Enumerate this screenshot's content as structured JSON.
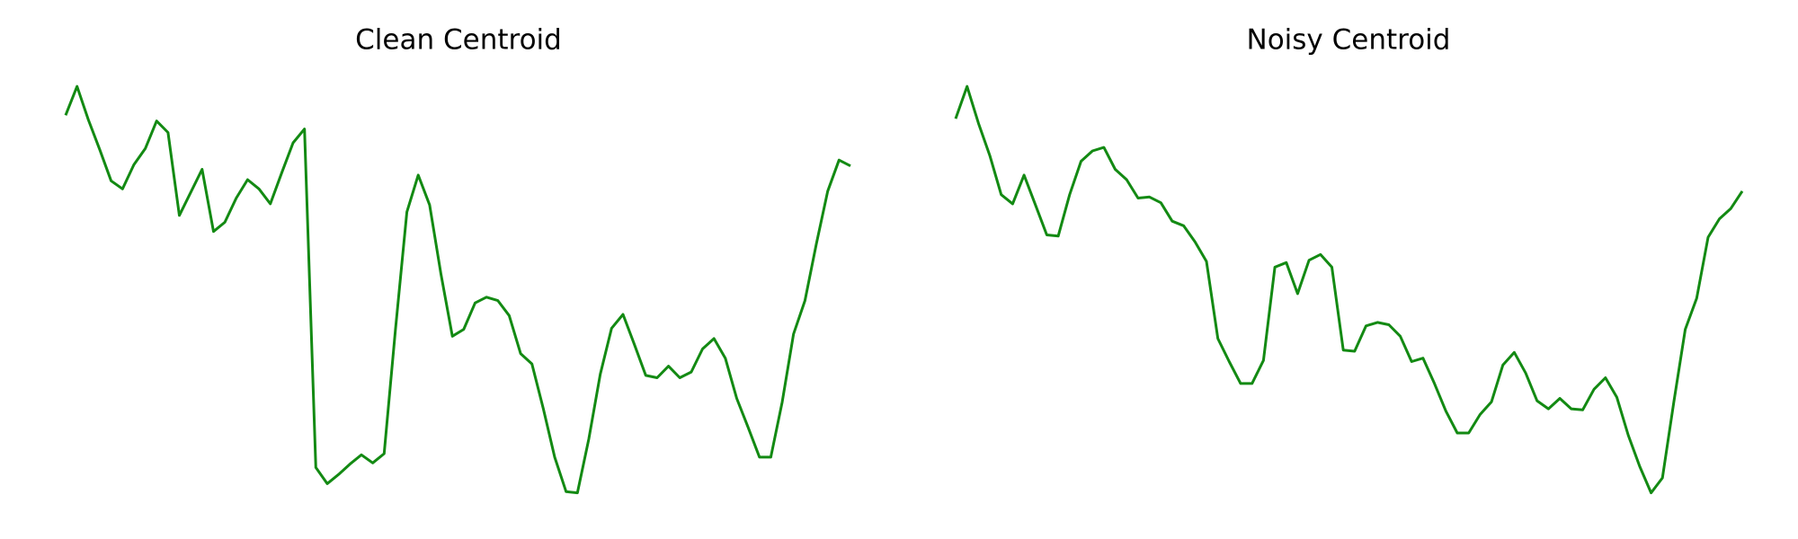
{
  "chart_data": [
    {
      "type": "line",
      "title": "Clean Centroid",
      "color": "#138a13",
      "ylim": [
        0,
        380
      ],
      "values": [
        340,
        365,
        336,
        310,
        283,
        276,
        297,
        311,
        335,
        325,
        253,
        273,
        293,
        239,
        247,
        268,
        284,
        276,
        263,
        290,
        316,
        328,
        34,
        20,
        28,
        37,
        45,
        38,
        46,
        154,
        256,
        288,
        262,
        202,
        148,
        154,
        177,
        182,
        179,
        166,
        133,
        124,
        85,
        43,
        13,
        12,
        59,
        115,
        155,
        167,
        141,
        114,
        112,
        122,
        112,
        117,
        137,
        146,
        129,
        94,
        69,
        43,
        43,
        91,
        150,
        179,
        228,
        274,
        301,
        296
      ]
    },
    {
      "type": "line",
      "title": "Noisy Centroid",
      "color": "#138a13",
      "ylim": [
        0,
        380
      ],
      "values": [
        337,
        365,
        333,
        305,
        271,
        263,
        288,
        262,
        236,
        235,
        271,
        300,
        309,
        312,
        293,
        284,
        268,
        269,
        264,
        248,
        244,
        230,
        213,
        146,
        126,
        107,
        107,
        127,
        208,
        212,
        185,
        214,
        219,
        208,
        136,
        135,
        157,
        160,
        158,
        148,
        126,
        129,
        107,
        83,
        64,
        64,
        80,
        91,
        123,
        134,
        116,
        92,
        85,
        94,
        85,
        84,
        102,
        112,
        95,
        62,
        35,
        12,
        25,
        91,
        154,
        181,
        234,
        250,
        259,
        274
      ]
    }
  ]
}
